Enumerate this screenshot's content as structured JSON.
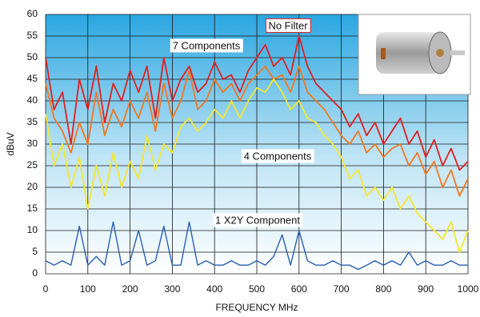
{
  "chart_data": {
    "type": "line",
    "y_label": "dBuV",
    "x_label": "FREQUENCY MHz",
    "x": [
      0,
      20,
      40,
      60,
      80,
      100,
      120,
      140,
      160,
      180,
      200,
      220,
      240,
      260,
      280,
      300,
      320,
      340,
      360,
      380,
      400,
      420,
      440,
      460,
      480,
      500,
      520,
      540,
      560,
      580,
      600,
      620,
      640,
      660,
      680,
      700,
      720,
      740,
      760,
      780,
      800,
      820,
      840,
      860,
      880,
      900,
      920,
      940,
      960,
      980,
      1000
    ],
    "series": [
      {
        "name": "No Filter",
        "color": "#e02020",
        "values": [
          50,
          38,
          42,
          30,
          45,
          38,
          48,
          35,
          44,
          40,
          47,
          42,
          48,
          36,
          50,
          40,
          45,
          48,
          42,
          44,
          49,
          45,
          46,
          42,
          47,
          50,
          53,
          48,
          50,
          46,
          55,
          48,
          44,
          42,
          40,
          38,
          34,
          37,
          32,
          35,
          30,
          33,
          36,
          30,
          33,
          27,
          31,
          25,
          29,
          24,
          26
        ]
      },
      {
        "name": "7 Components",
        "color": "#f07820",
        "values": [
          44,
          36,
          33,
          28,
          35,
          30,
          42,
          32,
          38,
          34,
          40,
          36,
          42,
          33,
          44,
          36,
          40,
          47,
          38,
          40,
          45,
          42,
          44,
          40,
          44,
          46,
          48,
          45,
          46,
          42,
          48,
          42,
          40,
          38,
          35,
          32,
          30,
          33,
          28,
          30,
          27,
          29,
          30,
          25,
          28,
          23,
          26,
          20,
          24,
          18,
          22
        ]
      },
      {
        "name": "4 Components",
        "color": "#f5e630",
        "values": [
          37,
          25,
          30,
          20,
          27,
          15,
          25,
          18,
          28,
          20,
          26,
          22,
          32,
          24,
          30,
          28,
          34,
          36,
          33,
          35,
          38,
          36,
          40,
          36,
          40,
          43,
          42,
          45,
          42,
          38,
          40,
          36,
          35,
          32,
          30,
          27,
          22,
          24,
          18,
          20,
          17,
          20,
          15,
          18,
          14,
          12,
          10,
          8,
          12,
          5,
          10
        ]
      },
      {
        "name": "1 X2Y Component",
        "color": "#2a5fb0",
        "values": [
          3,
          2,
          3,
          2,
          11,
          2,
          4,
          2,
          12,
          2,
          3,
          10,
          2,
          3,
          11,
          2,
          2,
          12,
          2,
          3,
          2,
          2,
          3,
          2,
          2,
          3,
          2,
          4,
          9,
          2,
          10,
          3,
          2,
          2,
          3,
          2,
          2,
          1,
          2,
          3,
          2,
          3,
          2,
          5,
          2,
          3,
          2,
          2,
          3,
          2,
          2
        ]
      }
    ],
    "xlim": [
      0,
      1000
    ],
    "xticks": [
      0,
      100,
      200,
      300,
      400,
      500,
      600,
      700,
      800,
      900,
      1000
    ],
    "ylim": [
      0,
      60
    ],
    "yticks": [
      0,
      5,
      10,
      15,
      20,
      25,
      30,
      35,
      40,
      45,
      50,
      55,
      60
    ],
    "grid": true
  }
}
